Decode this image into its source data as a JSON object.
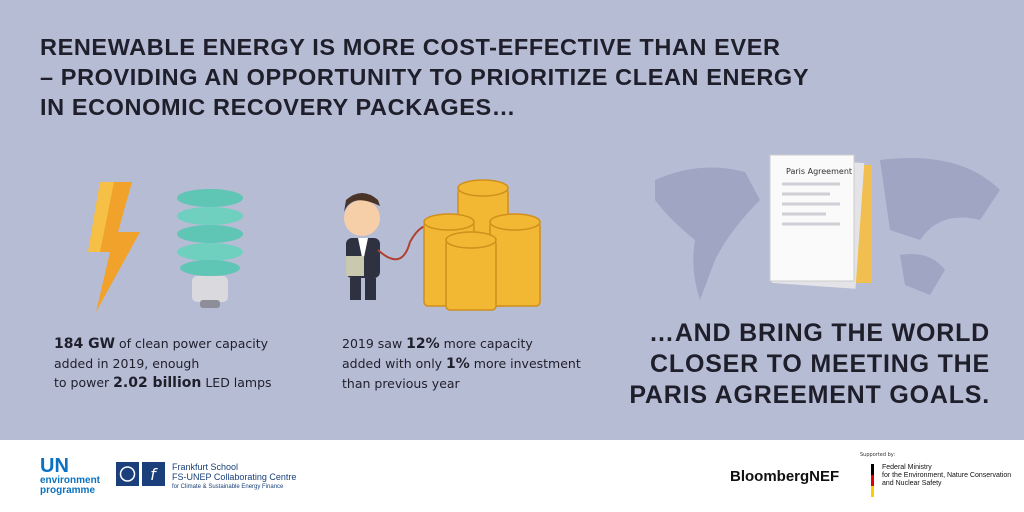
{
  "headline": {
    "lines": [
      "RENEWABLE ENERGY IS MORE COST-EFFECTIVE THAN EVER",
      "– PROVIDING AN OPPORTUNITY TO PRIORITIZE CLEAN ENERGY",
      "IN ECONOMIC RECOVERY PACKAGES…"
    ]
  },
  "stat1": {
    "parts": [
      "184 GW",
      " of clean power capacity",
      "added in 2019, enough",
      "to power ",
      "2.02 billion",
      " LED lamps"
    ]
  },
  "stat2": {
    "parts": [
      "2019 saw ",
      "12%",
      " more capacity",
      "added with only ",
      "1%",
      " more investment",
      "than previous year"
    ]
  },
  "document_label": "Paris Agreement",
  "conclusion": {
    "lines": [
      "…AND BRING THE WORLD",
      "CLOSER TO MEETING THE",
      "PARIS AGREEMENT GOALS."
    ]
  },
  "footer": {
    "unep": [
      "UN",
      "environment",
      "programme"
    ],
    "frankfurt": [
      "Frankfurt School",
      "FS-UNEP Collaborating Centre",
      "for Climate & Sustainable Energy Finance"
    ],
    "bnef": "BloombergNEF",
    "ministry": [
      "Supported by:",
      "Federal Ministry",
      "for the Environment, Nature Conservation",
      "and Nuclear Safety"
    ]
  }
}
